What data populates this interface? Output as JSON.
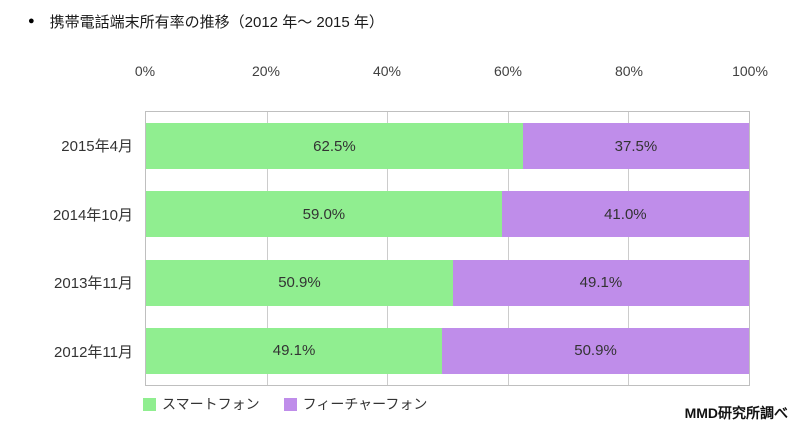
{
  "title": {
    "bullet": "●"
  },
  "chart_data": {
    "type": "bar",
    "orientation": "horizontal",
    "stacked": true,
    "title": "携帯電話端末所有率の推移（2012 年～ 2015 年）",
    "categories": [
      "2015年4月",
      "2014年10月",
      "2013年11月",
      "2012年11月"
    ],
    "series": [
      {
        "key": "smartphone",
        "name": "スマートフォン",
        "color": "#90ee90",
        "values": [
          62.5,
          59.0,
          50.9,
          49.1
        ]
      },
      {
        "key": "featurephone",
        "name": "フィーチャーフォン",
        "color": "#bf8dea",
        "values": [
          37.5,
          41.0,
          49.1,
          50.9
        ]
      }
    ],
    "x_ticks": [
      "0%",
      "20%",
      "40%",
      "60%",
      "80%",
      "100%"
    ],
    "xlim": [
      0,
      100
    ],
    "grid": true,
    "legend_position": "bottom",
    "source": "MMD研究所調べ"
  }
}
